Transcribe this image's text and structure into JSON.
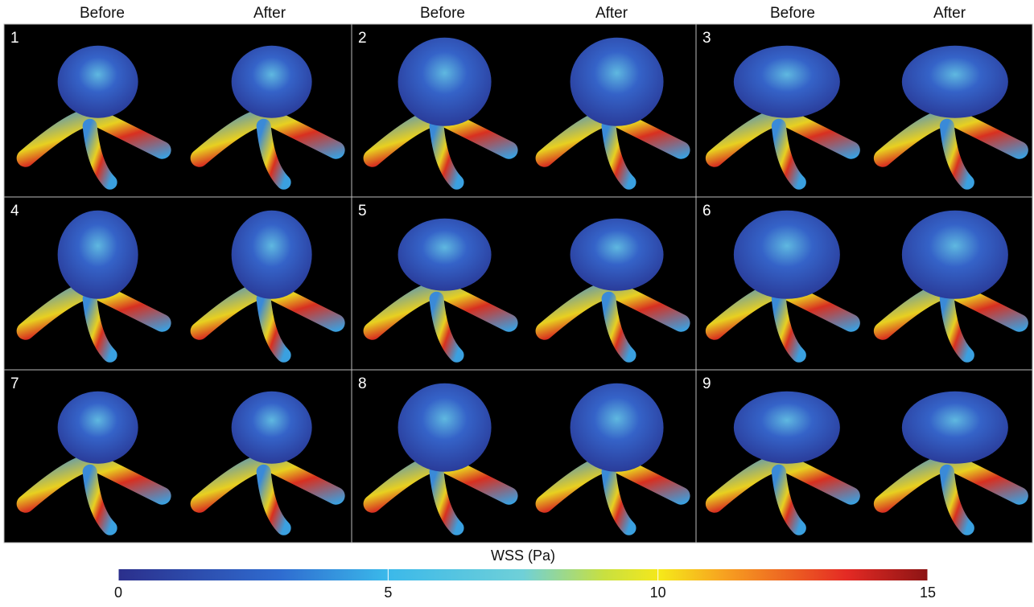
{
  "column_headers": [
    "Before",
    "After",
    "Before",
    "After",
    "Before",
    "After"
  ],
  "panels": [
    "1",
    "2",
    "3",
    "4",
    "5",
    "6",
    "7",
    "8",
    "9"
  ],
  "colorbar": {
    "label": "WSS (Pa)",
    "lim": [
      0,
      15
    ],
    "ticks": [
      0,
      5,
      10,
      15
    ]
  }
}
